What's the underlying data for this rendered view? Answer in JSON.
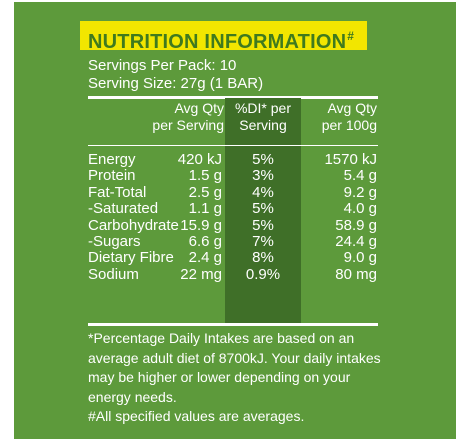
{
  "title": "NUTRITION INFORMATION",
  "title_mark": "#",
  "servings_per_pack": "Servings Per Pack: 10",
  "serving_size": "Serving Size: 27g (1 BAR)",
  "headers": {
    "col1_line1": "Avg Qty",
    "col1_line2": "per Serving",
    "col2_line1": "%DI* per",
    "col2_line2": "Serving",
    "col3_line1": "Avg Qty",
    "col3_line2": "per 100g"
  },
  "rows": [
    {
      "name": "Energy",
      "per_serving": "420 kJ",
      "di": "5%",
      "per_100g": "1570 kJ"
    },
    {
      "name": "Protein",
      "per_serving": "1.5 g",
      "di": "3%",
      "per_100g": "5.4 g"
    },
    {
      "name": "Fat-Total",
      "per_serving": "2.5 g",
      "di": "4%",
      "per_100g": "9.2 g"
    },
    {
      "name": "-Saturated",
      "per_serving": "1.1 g",
      "di": "5%",
      "per_100g": "4.0 g"
    },
    {
      "name": "Carbohydrate",
      "per_serving": "15.9 g",
      "di": "5%",
      "per_100g": "58.9 g"
    },
    {
      "name": "-Sugars",
      "per_serving": "6.6 g",
      "di": "7%",
      "per_100g": "24.4 g"
    },
    {
      "name": "Dietary Fibre",
      "per_serving": "2.4 g",
      "di": "8%",
      "per_100g": "9.0 g"
    },
    {
      "name": "Sodium",
      "per_serving": "22 mg",
      "di": "0.9%",
      "per_100g": "80 mg"
    }
  ],
  "footnote_1": "*Percentage Daily Intakes are based on an average adult diet of 8700kJ. Your daily intakes may be higher or lower depending on your energy needs.",
  "footnote_2": "#All specified values are averages.",
  "colors": {
    "panel_green": "#5d9a3b",
    "column_dark_green": "#3f6f28",
    "title_yellow": "#f2e600",
    "title_text_green": "#3f7a1e"
  }
}
